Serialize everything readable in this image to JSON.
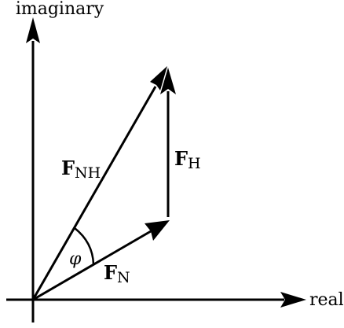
{
  "axes": {
    "imaginary_label": "imaginary",
    "real_label": "real"
  },
  "vectors": {
    "f_n": {
      "symbol": "F",
      "subscript": "N"
    },
    "f_h": {
      "symbol": "F",
      "subscript": "H"
    },
    "f_nh": {
      "symbol": "F",
      "subscript": "NH"
    }
  },
  "angle": {
    "symbol": "φ"
  },
  "colors": {
    "ink": "#000000",
    "background": "#ffffff"
  }
}
